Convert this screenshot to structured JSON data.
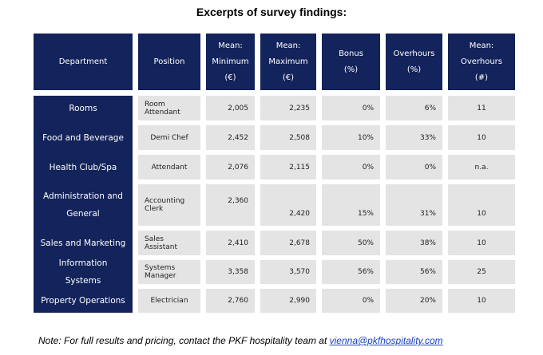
{
  "title": "Excerpts of survey findings:",
  "table": {
    "header": [
      [
        "Department"
      ],
      [
        "Position"
      ],
      [
        "Mean:",
        "Minimum",
        "(€)"
      ],
      [
        "Mean:",
        "Maximum",
        "(€)"
      ],
      [
        "Bonus",
        "(%)"
      ],
      [
        "Overhours",
        "(%)"
      ],
      [
        "Mean:",
        "Overhours",
        "(#)"
      ]
    ],
    "rows": [
      [
        "Rooms",
        "Room Attendant",
        "2,005",
        "2,235",
        "0%",
        "6%",
        "11"
      ],
      [
        "Food and Beverage",
        "Demi Chef",
        "2,452",
        "2,508",
        "10%",
        "33%",
        "10"
      ],
      [
        "Health Club/Spa",
        "Attendant",
        "2,076",
        "2,115",
        "0%",
        "0%",
        "n.a."
      ],
      [
        "Administration and General",
        "Accounting Clerk",
        "2,360",
        "2,420",
        "15%",
        "31%",
        "10"
      ],
      [
        "Sales and Marketing",
        "Sales Assistant",
        "2,410",
        "2,678",
        "50%",
        "38%",
        "10"
      ],
      [
        "Information Systems",
        "Systems Manager",
        "3,358",
        "3,570",
        "56%",
        "56%",
        "25"
      ],
      [
        "Property Operations",
        "Electrician",
        "2,760",
        "2,990",
        "0%",
        "20%",
        "10"
      ]
    ]
  },
  "note": {
    "text": "Note: For full results and pricing, contact the PKF hospitality team at",
    "email": "vienna@pkfhospitality.com"
  }
}
